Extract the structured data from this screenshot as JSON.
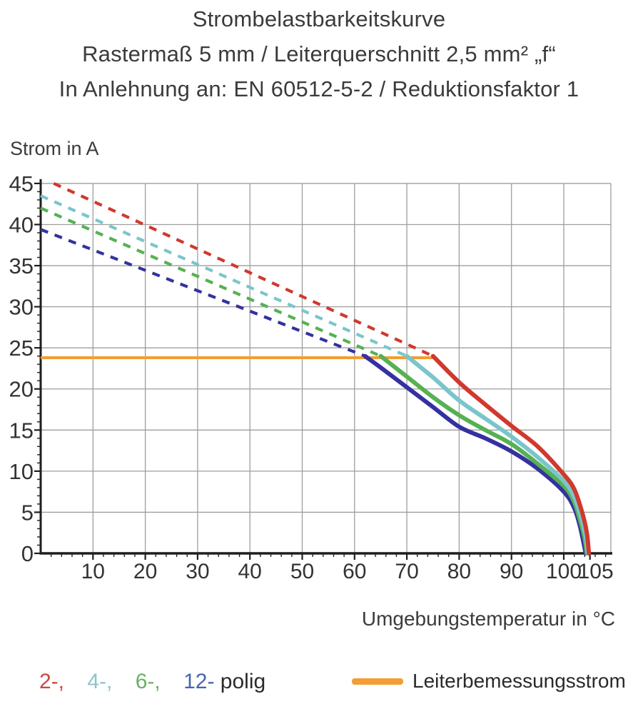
{
  "title": {
    "line1": "Strombelastbarkeitskurve",
    "line2": "Rastermaß 5 mm / Leiterquerschnitt 2,5 mm² „f“",
    "line3": "In Anlehnung an: EN 60512-5-2 / Reduktionsfaktor 1"
  },
  "chart_data": {
    "type": "line",
    "title": "Strombelastbarkeitskurve",
    "xlabel": "Umgebungstemperatur in °C",
    "ylabel": "Strom in A",
    "xlim": [
      0,
      109
    ],
    "ylim": [
      0,
      45
    ],
    "grid": true,
    "legend_position": "bottom",
    "x_major_ticks": [
      10,
      20,
      30,
      40,
      50,
      60,
      70,
      80,
      90,
      100,
      105
    ],
    "x_gridlines": [
      10,
      20,
      30,
      40,
      50,
      60,
      70,
      80,
      90,
      100
    ],
    "y_ticks": [
      0,
      5,
      10,
      15,
      20,
      25,
      30,
      35,
      40,
      45
    ],
    "x_minor_step": 2,
    "y_minor_step": 1,
    "series": [
      {
        "name": "2-polig",
        "color": "#d0392e",
        "dashed_segment": {
          "from": [
            2.5,
            45
          ],
          "to": [
            75,
            24
          ]
        },
        "solid_points": [
          [
            75,
            24
          ],
          [
            80,
            20.8
          ],
          [
            85,
            18.1
          ],
          [
            90,
            15.5
          ],
          [
            95,
            13
          ],
          [
            100,
            9.6
          ],
          [
            102,
            7.8
          ],
          [
            103.5,
            5
          ],
          [
            104.4,
            2.5
          ],
          [
            104.8,
            0
          ]
        ]
      },
      {
        "name": "4-polig",
        "color": "#7ac5cc",
        "dashed_segment": {
          "from": [
            0,
            43.5
          ],
          "to": [
            70,
            24
          ]
        },
        "solid_points": [
          [
            70,
            24
          ],
          [
            75,
            21.4
          ],
          [
            80,
            18.6
          ],
          [
            85,
            16.4
          ],
          [
            90,
            14.2
          ],
          [
            95,
            11.7
          ],
          [
            100,
            8.8
          ],
          [
            102,
            6.8
          ],
          [
            103.4,
            4.2
          ],
          [
            104.2,
            2
          ],
          [
            104.6,
            0
          ]
        ]
      },
      {
        "name": "6-polig",
        "color": "#56b152",
        "dashed_segment": {
          "from": [
            0,
            42
          ],
          "to": [
            65,
            24
          ]
        },
        "solid_points": [
          [
            65,
            24
          ],
          [
            70,
            21.5
          ],
          [
            75,
            19
          ],
          [
            80,
            16.8
          ],
          [
            85,
            15
          ],
          [
            90,
            13.3
          ],
          [
            95,
            10.9
          ],
          [
            100,
            8.2
          ],
          [
            102,
            6.2
          ],
          [
            103.2,
            3.8
          ],
          [
            104,
            1.8
          ],
          [
            104.4,
            0
          ]
        ]
      },
      {
        "name": "12-polig",
        "color": "#35319f",
        "dashed_segment": {
          "from": [
            0,
            39.4
          ],
          "to": [
            62,
            24
          ]
        },
        "solid_points": [
          [
            62,
            24
          ],
          [
            65,
            22.6
          ],
          [
            70,
            20.2
          ],
          [
            75,
            17.8
          ],
          [
            80,
            15.4
          ],
          [
            85,
            14
          ],
          [
            90,
            12.4
          ],
          [
            95,
            10.3
          ],
          [
            100,
            7.5
          ],
          [
            102,
            5.5
          ],
          [
            103.1,
            3.3
          ],
          [
            104.2,
            0
          ]
        ]
      },
      {
        "name": "Leiterbemessungsstrom",
        "color": "#f39d33",
        "straight": true,
        "solid_points": [
          [
            0,
            23.8
          ],
          [
            75.3,
            23.8
          ]
        ]
      }
    ]
  },
  "legend": {
    "poles": [
      {
        "label": "2-,",
        "color": "#cf4540"
      },
      {
        "label": "4-,",
        "color": "#8cc5cb"
      },
      {
        "label": "6-,",
        "color": "#6ab163"
      },
      {
        "label": "12-",
        "color": "#4565ab"
      }
    ],
    "poles_suffix": "polig",
    "rated": {
      "label": "Leiterbemessungsstrom",
      "color": "#f39d33"
    }
  },
  "colors": {
    "text": "#3b3b3b",
    "axis": "#1e1e1e",
    "grid": "#9e9e9e",
    "tick_label": "#333333"
  }
}
